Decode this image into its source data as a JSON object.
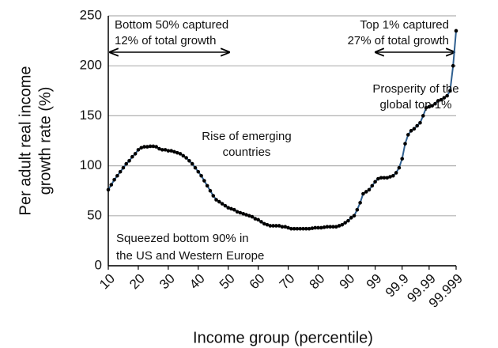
{
  "chart_data": {
    "type": "line",
    "ylabel": [
      "Per adult real income",
      "growth rate (%)"
    ],
    "xlabel": "Income group (percentile)",
    "annotations": [
      "Bottom 50% captured",
      "12% of total growth",
      "Top 1% captured",
      "27% of total growth",
      "Prosperity of the",
      "global top 1%",
      "Rise of emerging",
      "countries",
      "Squeezed bottom 90% in",
      "the US and Western Europe"
    ],
    "categories": [
      "10",
      null,
      null,
      null,
      null,
      null,
      null,
      null,
      null,
      null,
      "20",
      null,
      null,
      null,
      null,
      null,
      null,
      null,
      null,
      null,
      "30",
      null,
      null,
      null,
      null,
      null,
      null,
      null,
      null,
      null,
      "40",
      null,
      null,
      null,
      null,
      null,
      null,
      null,
      null,
      null,
      "50",
      null,
      null,
      null,
      null,
      null,
      null,
      null,
      null,
      null,
      "60",
      null,
      null,
      null,
      null,
      null,
      null,
      null,
      null,
      null,
      "70",
      null,
      null,
      null,
      null,
      null,
      null,
      null,
      null,
      null,
      "80",
      null,
      null,
      null,
      null,
      null,
      null,
      null,
      null,
      null,
      "90",
      null,
      null,
      null,
      null,
      null,
      null,
      null,
      null,
      "99",
      null,
      null,
      null,
      null,
      null,
      null,
      null,
      null,
      "99.9",
      null,
      null,
      null,
      null,
      null,
      null,
      null,
      null,
      "99.99",
      null,
      null,
      null,
      null,
      null,
      null,
      null,
      null,
      "99.999"
    ],
    "values": [
      76,
      81,
      86,
      90,
      94,
      98,
      102,
      105,
      109,
      112,
      116,
      118,
      119,
      119,
      119.5,
      119.5,
      119,
      117,
      116,
      116,
      115,
      115,
      114,
      113,
      112,
      110,
      108,
      105,
      102,
      98,
      94,
      90,
      85,
      80,
      75,
      70,
      66,
      64,
      62,
      60,
      58,
      57,
      56,
      54,
      53,
      52,
      51,
      50,
      49,
      47,
      46,
      44,
      42,
      41,
      40,
      40,
      40,
      40,
      39,
      39,
      38,
      37,
      37,
      37,
      37,
      37,
      37,
      37,
      37.5,
      38,
      38,
      38,
      38.5,
      39,
      39,
      39,
      39,
      40,
      41,
      43,
      45,
      48,
      50,
      56,
      63,
      72,
      74,
      76,
      80,
      84,
      87,
      88,
      88,
      88,
      89,
      90,
      93,
      98,
      107,
      122,
      131,
      135,
      137,
      140,
      143,
      150,
      158,
      159,
      160,
      162,
      165,
      166,
      168,
      170,
      175,
      200,
      235
    ],
    "color": "#2f5f8f",
    "marker_color": "#000000",
    "ylim": [
      0,
      250
    ],
    "yticks": [
      0,
      50,
      100,
      150,
      200,
      250
    ],
    "grid": true
  }
}
